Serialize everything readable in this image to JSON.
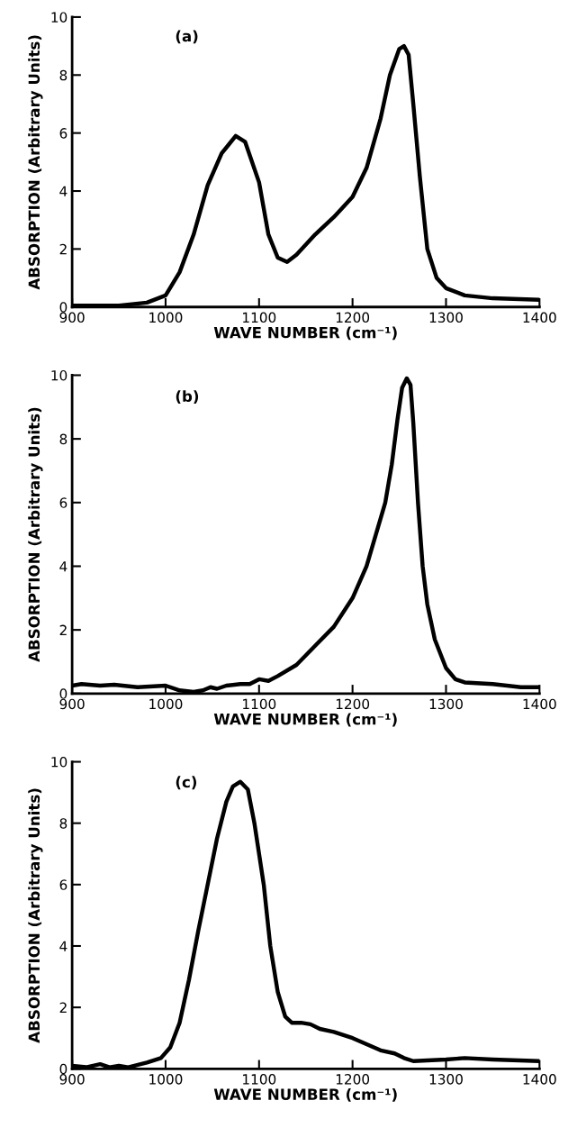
{
  "chart_data": [
    {
      "type": "line",
      "annotations": [
        "(a)"
      ],
      "xlabel": "WAVE NUMBER (cm⁻¹)",
      "ylabel": "ABSORPTION (Arbitrary Units)",
      "xlim": [
        900,
        1400
      ],
      "ylim": [
        0,
        10
      ],
      "xticks": [
        900,
        1000,
        1100,
        1200,
        1300,
        1400
      ],
      "yticks": [
        0,
        2,
        4,
        6,
        8,
        10
      ],
      "grid": false,
      "series": [
        {
          "color": "#000000",
          "x": [
            900,
            950,
            980,
            1000,
            1015,
            1030,
            1045,
            1060,
            1075,
            1085,
            1100,
            1110,
            1120,
            1130,
            1140,
            1160,
            1180,
            1200,
            1215,
            1230,
            1240,
            1250,
            1255,
            1260,
            1265,
            1272,
            1280,
            1290,
            1300,
            1320,
            1350,
            1400
          ],
          "values": [
            0.05,
            0.05,
            0.15,
            0.4,
            1.2,
            2.5,
            4.2,
            5.3,
            5.9,
            5.7,
            4.3,
            2.5,
            1.7,
            1.55,
            1.8,
            2.5,
            3.1,
            3.8,
            4.8,
            6.5,
            8.0,
            8.9,
            9.0,
            8.7,
            7.0,
            4.5,
            2.0,
            1.0,
            0.65,
            0.4,
            0.3,
            0.25
          ]
        }
      ]
    },
    {
      "type": "line",
      "annotations": [
        "(b)"
      ],
      "xlabel": "WAVE NUMBER (cm⁻¹)",
      "ylabel": "ABSORPTION (Arbitrary Units)",
      "xlim": [
        900,
        1400
      ],
      "ylim": [
        0,
        10
      ],
      "xticks": [
        900,
        1000,
        1100,
        1200,
        1300,
        1400
      ],
      "yticks": [
        0,
        2,
        4,
        6,
        8,
        10
      ],
      "grid": false,
      "series": [
        {
          "color": "#000000",
          "x": [
            900,
            910,
            930,
            945,
            970,
            1000,
            1015,
            1030,
            1040,
            1048,
            1055,
            1065,
            1080,
            1090,
            1100,
            1110,
            1120,
            1140,
            1160,
            1180,
            1200,
            1215,
            1225,
            1235,
            1242,
            1248,
            1253,
            1258,
            1262,
            1265,
            1270,
            1275,
            1280,
            1288,
            1300,
            1310,
            1320,
            1350,
            1380,
            1400
          ],
          "values": [
            0.25,
            0.3,
            0.25,
            0.28,
            0.2,
            0.25,
            0.1,
            0.05,
            0.1,
            0.2,
            0.15,
            0.25,
            0.3,
            0.3,
            0.45,
            0.4,
            0.55,
            0.9,
            1.5,
            2.1,
            3.0,
            4.0,
            5.0,
            6.0,
            7.2,
            8.6,
            9.6,
            9.9,
            9.7,
            8.5,
            6.0,
            4.0,
            2.8,
            1.7,
            0.8,
            0.45,
            0.35,
            0.3,
            0.2,
            0.2
          ]
        }
      ]
    },
    {
      "type": "line",
      "annotations": [
        "(c)"
      ],
      "xlabel": "WAVE NUMBER (cm⁻¹)",
      "ylabel": "ABSORPTION (Arbitrary Units)",
      "xlim": [
        900,
        1400
      ],
      "ylim": [
        0,
        10
      ],
      "xticks": [
        900,
        1000,
        1100,
        1200,
        1300,
        1400
      ],
      "yticks": [
        0,
        2,
        4,
        6,
        8,
        10
      ],
      "grid": false,
      "series": [
        {
          "color": "#000000",
          "x": [
            900,
            915,
            930,
            940,
            950,
            960,
            980,
            995,
            1005,
            1015,
            1025,
            1035,
            1045,
            1055,
            1065,
            1072,
            1080,
            1088,
            1095,
            1105,
            1112,
            1120,
            1128,
            1135,
            1145,
            1155,
            1165,
            1180,
            1200,
            1215,
            1230,
            1245,
            1255,
            1265,
            1300,
            1320,
            1350,
            1400
          ],
          "values": [
            0.1,
            0.05,
            0.15,
            0.05,
            0.1,
            0.05,
            0.2,
            0.35,
            0.7,
            1.5,
            2.9,
            4.5,
            6.0,
            7.5,
            8.7,
            9.2,
            9.35,
            9.1,
            8.0,
            6.0,
            4.0,
            2.5,
            1.7,
            1.5,
            1.5,
            1.45,
            1.3,
            1.2,
            1.0,
            0.8,
            0.6,
            0.5,
            0.35,
            0.25,
            0.3,
            0.35,
            0.3,
            0.25
          ]
        }
      ]
    }
  ]
}
